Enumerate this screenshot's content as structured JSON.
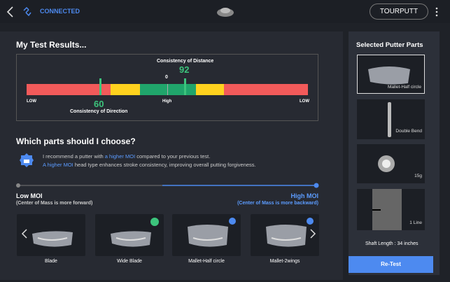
{
  "header": {
    "status": "CONNECTED",
    "button": "TOURPUTT"
  },
  "results": {
    "title": "My Test Results...",
    "distance_label": "Consistency of Distance",
    "distance_value": "92",
    "zero": "0",
    "direction_value": "60",
    "direction_label": "Consistency of Direction",
    "low_left": "LOW",
    "high": "High",
    "low_right": "LOW"
  },
  "choose": {
    "title": "Which parts should I choose?",
    "line1": [
      "I recommend a putter with ",
      "a higher MOI",
      " compared to your previous test."
    ],
    "line2": [
      "A higher MOI",
      " head type enhances stroke consistency, improving overall putting forgiveness."
    ]
  },
  "slider": {
    "low_title": "Low MOI",
    "low_note": "(Center of Mass is more forward)",
    "high_title": "High MOI",
    "high_note": "(Center of Mass is more backward)"
  },
  "putters": [
    "Blade",
    "Wide Blade",
    "Mallet-Half circle",
    "Mallet-2wings"
  ],
  "selected": {
    "title": "Selected Putter Parts",
    "parts": [
      "Mallet-Half circle",
      "Double Bend",
      "15g",
      "1 Line"
    ],
    "shaft": "Shaft Length : 34 inches",
    "button": "Re-Test"
  }
}
